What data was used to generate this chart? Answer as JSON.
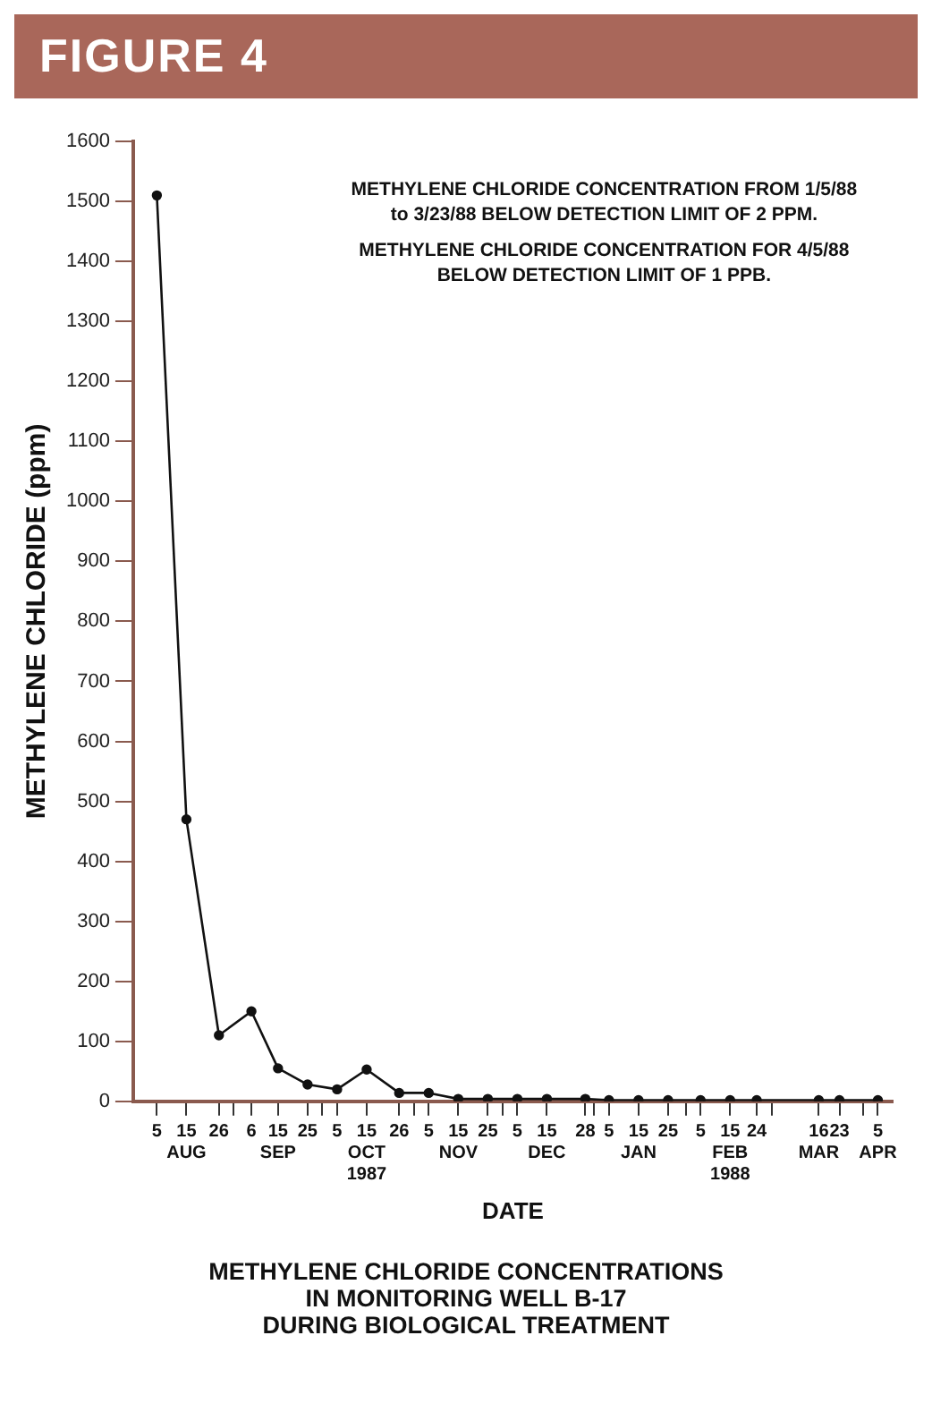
{
  "chart_data": {
    "type": "line",
    "title": "FIGURE 4",
    "subtitle": "METHYLENE CHLORIDE CONCENTRATIONS\nIN MONITORING WELL B-17\nDURING BIOLOGICAL TREATMENT",
    "xlabel": "DATE",
    "ylabel": "METHYLENE CHLORIDE (ppm)",
    "annotations": [
      "METHYLENE CHLORIDE CONCENTRATION FROM 1/5/88\nto 3/23/88 BELOW DETECTION LIMIT OF 2 PPM.",
      "METHYLENE CHLORIDE CONCENTRATION FOR 4/5/88\nBELOW DETECTION LIMIT OF 1 PPB."
    ],
    "x": [
      "1987-08-05",
      "1987-08-15",
      "1987-08-26",
      "1987-09-06",
      "1987-09-15",
      "1987-09-25",
      "1987-10-05",
      "1987-10-15",
      "1987-10-26",
      "1987-11-05",
      "1987-11-15",
      "1987-11-25",
      "1987-12-05",
      "1987-12-15",
      "1987-12-28",
      "1988-01-05",
      "1988-01-15",
      "1988-01-25",
      "1988-02-05",
      "1988-02-15",
      "1988-02-24",
      "1988-03-16",
      "1988-03-23",
      "1988-04-05"
    ],
    "series": [
      {
        "color": "#111111",
        "values": [
          1510,
          470,
          110,
          150,
          55,
          28,
          20,
          53,
          14,
          14,
          4,
          4,
          4,
          4,
          4,
          2,
          2,
          2,
          2,
          2,
          2,
          2,
          2,
          2
        ]
      }
    ],
    "xlim": [
      "1987-07-28",
      "1988-04-10"
    ],
    "xticks": [
      {
        "value": "1987-08-05",
        "label": "5"
      },
      {
        "value": "1987-08-15",
        "label": "15\nAUG"
      },
      {
        "value": "1987-08-26",
        "label": "26"
      },
      {
        "value": "1987-08-31",
        "label": null
      },
      {
        "value": "1987-09-06",
        "label": "6"
      },
      {
        "value": "1987-09-15",
        "label": "15\nSEP"
      },
      {
        "value": "1987-09-25",
        "label": "25"
      },
      {
        "value": "1987-09-30",
        "label": null
      },
      {
        "value": "1987-10-05",
        "label": "5"
      },
      {
        "value": "1987-10-15",
        "label": "15\nOCT\n1987"
      },
      {
        "value": "1987-10-26",
        "label": "26"
      },
      {
        "value": "1987-10-31",
        "label": null
      },
      {
        "value": "1987-11-05",
        "label": "5"
      },
      {
        "value": "1987-11-15",
        "label": "15\nNOV"
      },
      {
        "value": "1987-11-25",
        "label": "25"
      },
      {
        "value": "1987-11-30",
        "label": null
      },
      {
        "value": "1987-12-05",
        "label": "5"
      },
      {
        "value": "1987-12-15",
        "label": "15\nDEC"
      },
      {
        "value": "1987-12-28",
        "label": "28"
      },
      {
        "value": "1987-12-31",
        "label": null
      },
      {
        "value": "1988-01-05",
        "label": "5"
      },
      {
        "value": "1988-01-15",
        "label": "15\nJAN"
      },
      {
        "value": "1988-01-25",
        "label": "25"
      },
      {
        "value": "1988-01-31",
        "label": null
      },
      {
        "value": "1988-02-05",
        "label": "5"
      },
      {
        "value": "1988-02-15",
        "label": "15\nFEB\n1988"
      },
      {
        "value": "1988-02-24",
        "label": "24"
      },
      {
        "value": "1988-02-29",
        "label": null
      },
      {
        "value": "1988-03-16",
        "label": "16\nMAR"
      },
      {
        "value": "1988-03-23",
        "label": "23"
      },
      {
        "value": "1988-03-31",
        "label": null
      },
      {
        "value": "1988-04-05",
        "label": "5\nAPR"
      }
    ],
    "ylim": [
      0,
      1600
    ],
    "yticks": [
      0,
      100,
      200,
      300,
      400,
      500,
      600,
      700,
      800,
      900,
      1000,
      1100,
      1200,
      1300,
      1400,
      1500,
      1600
    ],
    "grid": false,
    "legend": false,
    "marker": "circle",
    "line_style": "solid"
  }
}
